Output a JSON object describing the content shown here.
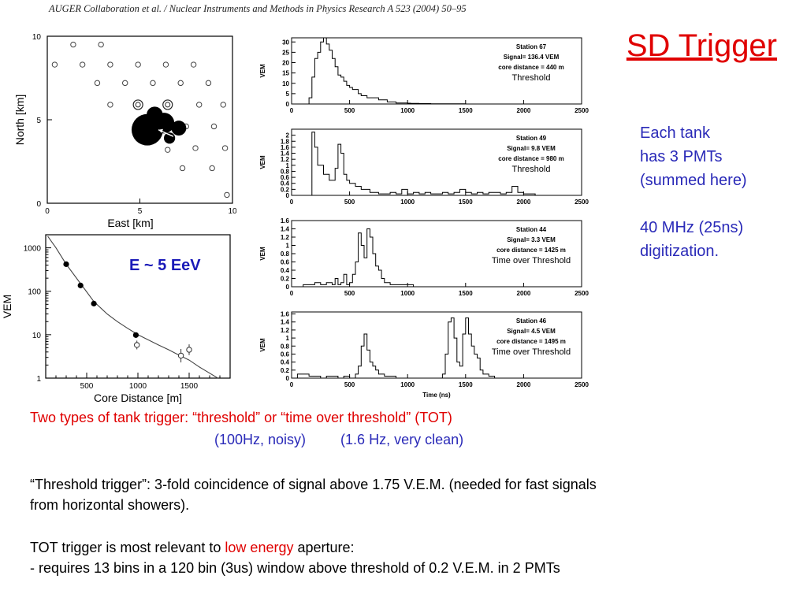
{
  "header": {
    "journal": "AUGER Collaboration et al. / Nuclear Instruments and Methods in Physics Research A 523 (2004) 50–95"
  },
  "slide": {
    "title": "SD Trigger",
    "side_notes": [
      "Each tank",
      "has 3 PMTs",
      "(summed here)",
      "40 MHz (25ns)",
      "digitization."
    ],
    "trigger_line": "Two types of tank trigger: “threshold” or “time over threshold” (TOT)",
    "rate_threshold": "(100Hz, noisy)",
    "rate_tot": "(1.6 Hz, very clean)",
    "threshold_text_1": "“Threshold trigger”: 3-fold coincidence of signal above 1.75 V.E.M. (needed for fast signals",
    "threshold_text_2": "from horizontal showers).",
    "tot_prefix": "TOT trigger is most relevant to ",
    "tot_highlight": "low energy",
    "tot_suffix": " aperture:",
    "tot_detail": "- requires 13 bins in a 120 bin (3us) window above threshold of 0.2 V.E.M. in 2 PMTs"
  },
  "chart_data": [
    {
      "type": "scatter",
      "title": "",
      "xlabel": "East  [km]",
      "ylabel": "North  [km]",
      "xlim": [
        0,
        10
      ],
      "ylim": [
        0,
        10
      ],
      "xticks": [
        "0",
        "5",
        "10"
      ],
      "yticks": [
        "0",
        "5",
        "10"
      ],
      "stations": [
        [
          1.4,
          9.5
        ],
        [
          2.9,
          9.5
        ],
        [
          0.4,
          8.3
        ],
        [
          1.9,
          8.3
        ],
        [
          3.4,
          8.3
        ],
        [
          4.9,
          8.3
        ],
        [
          6.4,
          8.3
        ],
        [
          7.9,
          8.3
        ],
        [
          2.7,
          7.2
        ],
        [
          4.2,
          7.2
        ],
        [
          5.7,
          7.2
        ],
        [
          7.2,
          7.2
        ],
        [
          8.7,
          7.2
        ],
        [
          3.4,
          5.9
        ],
        [
          8.2,
          5.9
        ],
        [
          9.5,
          5.9
        ],
        [
          7.5,
          4.6
        ],
        [
          9.0,
          4.6
        ],
        [
          8.0,
          3.3
        ],
        [
          9.6,
          3.3
        ],
        [
          7.3,
          2.1
        ],
        [
          8.9,
          2.1
        ],
        [
          10.4,
          2.1
        ],
        [
          9.7,
          0.5
        ]
      ],
      "hit_stations": [
        {
          "x": 5.4,
          "y": 4.4,
          "signal": 136.4
        },
        {
          "x": 6.3,
          "y": 4.8,
          "signal": 49
        },
        {
          "x": 7.1,
          "y": 4.5,
          "signal": 20
        },
        {
          "x": 5.8,
          "y": 5.3,
          "signal": 25
        },
        {
          "x": 6.6,
          "y": 3.9,
          "signal": 8
        }
      ],
      "double_ring_stations": [
        [
          4.9,
          5.9
        ],
        [
          6.5,
          5.9
        ]
      ],
      "extra_ring_stations": [
        [
          6.5,
          3.2
        ]
      ],
      "shower_direction": {
        "from": [
          6.8,
          4.0
        ],
        "to": [
          6.0,
          4.4
        ]
      }
    },
    {
      "type": "scatter",
      "title": "",
      "xlabel": "Core Distance  [m]",
      "ylabel": "VEM",
      "log_y": true,
      "xlim": [
        100,
        1900
      ],
      "ylim": [
        1,
        2000
      ],
      "xticks": [
        "500",
        "1000",
        "1500"
      ],
      "yticks": [
        "1",
        "10",
        "100",
        "1000"
      ],
      "annotation": "E ~ 5 EeV",
      "filled_points": [
        {
          "x": 300,
          "y": 420
        },
        {
          "x": 440,
          "y": 136
        },
        {
          "x": 570,
          "y": 52
        },
        {
          "x": 980,
          "y": 9.8
        }
      ],
      "open_points": [
        {
          "x": 990,
          "y": 5.8,
          "err_lo": 4.6,
          "err_hi": 7.3
        },
        {
          "x": 1420,
          "y": 3.3,
          "err_lo": 2.3,
          "err_hi": 4.7
        },
        {
          "x": 1500,
          "y": 4.5,
          "err_lo": 3.4,
          "err_hi": 6.0
        }
      ],
      "fit_curve": {
        "x": [
          120,
          200,
          300,
          440,
          570,
          700,
          800,
          900,
          1000,
          1100,
          1200,
          1300,
          1400,
          1500,
          1600,
          1700,
          1780
        ],
        "y": [
          1850,
          1000,
          420,
          150,
          58,
          30,
          20,
          14,
          10,
          7.6,
          5.8,
          4.5,
          3.4,
          2.6,
          1.8,
          1.3,
          1.0
        ]
      }
    },
    {
      "type": "histogram",
      "station": "Station 67",
      "signal": "Signal= 136.4 VEM",
      "core_distance": "core distance = 440 m",
      "trigger": "Threshold",
      "ylabel": "VEM",
      "xlabel": "",
      "xlim": [
        0,
        2500
      ],
      "ylim": [
        0,
        32
      ],
      "yticks": [
        "0",
        "5",
        "10",
        "15",
        "20",
        "25",
        "30"
      ],
      "xticks": [
        "0",
        "500",
        "1000",
        "1500",
        "2000",
        "2500"
      ],
      "x": [
        0,
        50,
        75,
        100,
        125,
        150,
        175,
        200,
        225,
        250,
        275,
        300,
        325,
        350,
        375,
        400,
        425,
        450,
        475,
        500,
        525,
        550,
        575,
        600,
        625,
        650,
        675,
        700,
        725,
        750,
        775,
        800,
        825,
        850,
        875,
        900,
        925,
        950,
        975,
        1000,
        1025,
        1050,
        1075,
        1100,
        1125,
        1150,
        1200,
        1250,
        1300,
        1350,
        1400,
        1450,
        1500,
        1550,
        1600,
        1650,
        1700,
        2500
      ],
      "y": [
        0,
        0,
        0,
        0,
        0,
        3,
        13,
        22,
        25,
        30,
        32,
        29,
        26,
        22,
        18,
        14,
        13,
        11,
        9,
        8,
        7,
        7,
        5,
        4,
        4,
        3,
        3,
        3,
        3,
        2,
        2,
        2,
        1,
        1,
        1,
        0.5,
        0.5,
        0.5,
        0.5,
        0.4,
        0.3,
        0.3,
        0.3,
        0.2,
        0.2,
        0.2,
        0.1,
        0.1,
        0.1,
        0.1,
        0.1,
        0.1,
        0,
        0,
        0,
        0,
        0,
        0
      ]
    },
    {
      "type": "histogram",
      "station": "Station 49",
      "signal": "Signal= 9.8 VEM",
      "core_distance": "core distance = 980 m",
      "trigger": "Threshold",
      "ylabel": "VEM",
      "xlabel": "",
      "xlim": [
        0,
        2500
      ],
      "ylim": [
        0,
        2.2
      ],
      "yticks": [
        "0",
        "0.2",
        "0.4",
        "0.6",
        "0.8",
        "1",
        "1.2",
        "1.4",
        "1.6",
        "1.8",
        "2"
      ],
      "xticks": [
        "0",
        "500",
        "1000",
        "1500",
        "2000",
        "2500"
      ],
      "x": [
        0,
        50,
        75,
        100,
        125,
        150,
        175,
        200,
        225,
        250,
        275,
        300,
        325,
        350,
        375,
        400,
        425,
        450,
        475,
        500,
        525,
        550,
        575,
        600,
        625,
        650,
        675,
        700,
        725,
        750,
        800,
        850,
        900,
        950,
        1000,
        1050,
        1100,
        1150,
        1200,
        1250,
        1300,
        1350,
        1400,
        1450,
        1500,
        1550,
        1600,
        1650,
        1700,
        1750,
        1800,
        1850,
        1900,
        1950,
        2000,
        2050,
        2100,
        2500
      ],
      "y": [
        0,
        0,
        0,
        0,
        0,
        0,
        2.1,
        1.6,
        1.0,
        1.0,
        0.7,
        0.7,
        0.5,
        0.5,
        0.9,
        1.7,
        1.4,
        0.7,
        0.5,
        0.4,
        0.4,
        0.3,
        0.3,
        0.2,
        0.2,
        0.2,
        0.1,
        0.1,
        0.1,
        0.05,
        0.05,
        0.1,
        0.05,
        0.2,
        0.05,
        0.1,
        0.05,
        0.1,
        0.05,
        0.05,
        0.1,
        0.05,
        0.1,
        0.2,
        0.1,
        0.05,
        0.1,
        0.05,
        0.1,
        0.1,
        0.05,
        0.1,
        0.3,
        0.1,
        0.05,
        0.05,
        0,
        0
      ]
    },
    {
      "type": "histogram",
      "station": "Station 44",
      "signal": "Signal= 3.3 VEM",
      "core_distance": "core distance = 1425 m",
      "trigger": "Time over Threshold",
      "ylabel": "VEM",
      "xlabel": "",
      "xlim": [
        0,
        2500
      ],
      "ylim": [
        0,
        1.6
      ],
      "yticks": [
        "0",
        "0.2",
        "0.4",
        "0.6",
        "0.8",
        "1",
        "1.2",
        "1.4",
        "1.6"
      ],
      "xticks": [
        "0",
        "500",
        "1000",
        "1500",
        "2000",
        "2500"
      ],
      "x": [
        0,
        50,
        100,
        150,
        200,
        250,
        300,
        350,
        375,
        400,
        425,
        450,
        475,
        500,
        525,
        550,
        575,
        600,
        625,
        650,
        675,
        700,
        725,
        750,
        775,
        800,
        825,
        850,
        900,
        950,
        1000,
        1050,
        1100,
        1150,
        1200,
        1250,
        1300,
        1350,
        1400,
        1450,
        1500,
        1550,
        1600,
        1650,
        1700,
        2500
      ],
      "y": [
        0,
        0,
        0.05,
        0.05,
        0.1,
        0.05,
        0.1,
        0.05,
        0.2,
        0.05,
        0.1,
        0.3,
        0.05,
        0.1,
        0.3,
        0.6,
        1.3,
        1.0,
        0.7,
        1.4,
        1.2,
        0.8,
        0.5,
        0.4,
        0.2,
        0.1,
        0.1,
        0.05,
        0.05,
        0.05,
        0.05,
        0,
        0,
        0,
        0,
        0,
        0,
        0,
        0,
        0,
        0,
        0,
        0,
        0,
        0,
        0
      ]
    },
    {
      "type": "histogram",
      "station": "Station 46",
      "signal": "Signal= 4.5 VEM",
      "core_distance": "core distance = 1495 m",
      "trigger": "Time over Threshold",
      "ylabel": "VEM",
      "xlabel": "Time (ns)",
      "xlim": [
        0,
        2500
      ],
      "ylim": [
        0,
        1.65
      ],
      "yticks": [
        "0",
        "0.2",
        "0.4",
        "0.6",
        "0.8",
        "1",
        "1.2",
        "1.4",
        "1.6"
      ],
      "xticks": [
        "0",
        "500",
        "1000",
        "1500",
        "2000",
        "2500"
      ],
      "x": [
        0,
        50,
        100,
        150,
        200,
        250,
        300,
        350,
        400,
        450,
        500,
        550,
        575,
        600,
        625,
        650,
        675,
        700,
        725,
        750,
        800,
        850,
        900,
        950,
        1000,
        1050,
        1100,
        1150,
        1200,
        1250,
        1300,
        1325,
        1350,
        1375,
        1400,
        1425,
        1450,
        1475,
        1500,
        1525,
        1550,
        1575,
        1600,
        1625,
        1650,
        1700,
        1750,
        2500
      ],
      "y": [
        0,
        0.1,
        0.1,
        0.05,
        0.05,
        0,
        0.05,
        0.05,
        0,
        0.05,
        0,
        0.1,
        0.3,
        0.8,
        1.1,
        0.7,
        0.4,
        0.3,
        0.2,
        0.1,
        0.05,
        0.05,
        0,
        0,
        0,
        0,
        0,
        0,
        0,
        0,
        0.1,
        0.6,
        1.4,
        1.5,
        1.0,
        0.4,
        0.3,
        1.1,
        1.5,
        1.1,
        0.8,
        0.6,
        0.5,
        0.2,
        0.1,
        0.05,
        0,
        0
      ]
    }
  ]
}
